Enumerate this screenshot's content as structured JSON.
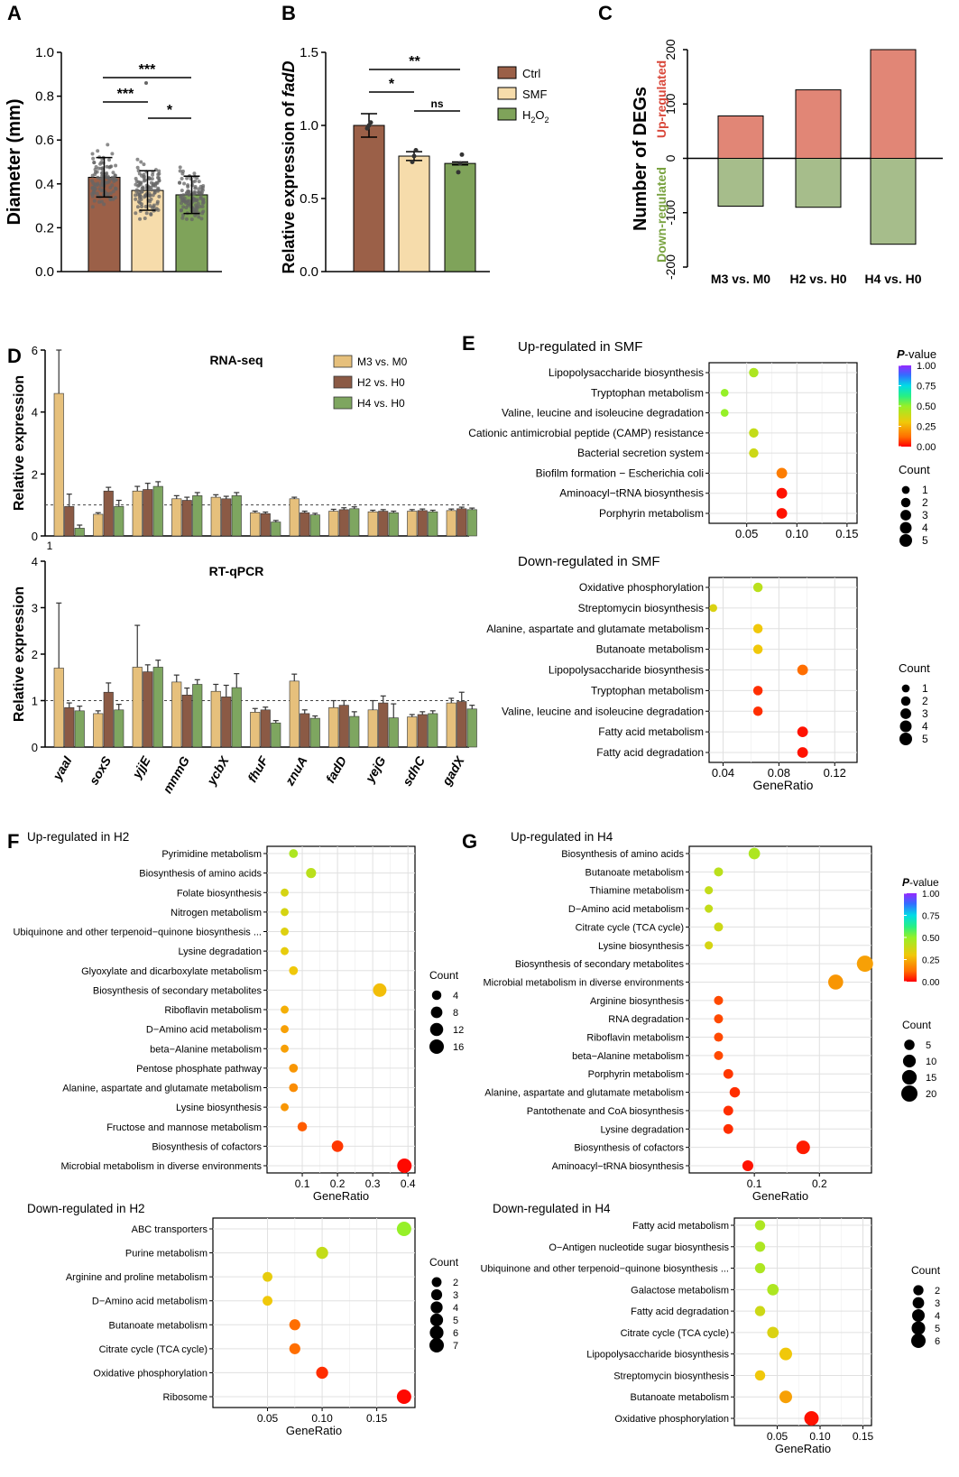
{
  "colors": {
    "ctrl": "#9b6048",
    "smf": "#f6dcab",
    "h2o2": "#7fa35a",
    "m3": "#e6c07c",
    "h2": "#8b5a45",
    "h4": "#7ea660",
    "up": "#e18676",
    "down": "#a6bd8b",
    "up_text": "#d9483b",
    "down_text": "#7aa341"
  },
  "chart_data": [
    {
      "id": "A",
      "panel_label": "A",
      "type": "bar",
      "categories": [
        "Ctrl",
        "SMF",
        "H2O2"
      ],
      "values": [
        0.43,
        0.37,
        0.35
      ],
      "errors": [
        0.09,
        0.09,
        0.085
      ],
      "ylabel": "Diameter (mm)",
      "ylim": [
        0,
        1.0
      ],
      "yticks": [
        "0.0",
        "0.2",
        "0.4",
        "0.6",
        "0.8",
        "1.0"
      ],
      "significance": [
        {
          "pair": [
            0,
            1
          ],
          "label": "***"
        },
        {
          "pair": [
            0,
            2
          ],
          "label": "***"
        },
        {
          "pair": [
            1,
            2
          ],
          "label": "*"
        }
      ]
    },
    {
      "id": "B",
      "panel_label": "B",
      "type": "bar",
      "categories": [
        "Ctrl",
        "SMF",
        "H2O2"
      ],
      "values": [
        1.0,
        0.79,
        0.74
      ],
      "errors": [
        0.08,
        0.03,
        0.01
      ],
      "ylabel": "Relative expression of fadD",
      "ylabel_prefix": "Relative expression of ",
      "ylabel_gene": "fadD",
      "ylim": [
        0,
        1.5
      ],
      "yticks": [
        "0.0",
        "0.5",
        "1.0",
        "1.5"
      ],
      "legend": [
        "Ctrl",
        "SMF",
        "H2O2"
      ],
      "legend_h2o2_parts": [
        "H",
        "2",
        "O",
        "2"
      ],
      "significance": [
        {
          "pair": [
            0,
            1
          ],
          "label": "*"
        },
        {
          "pair": [
            0,
            2
          ],
          "label": "**"
        },
        {
          "pair": [
            1,
            2
          ],
          "label": "ns"
        }
      ]
    },
    {
      "id": "C",
      "panel_label": "C",
      "type": "bar",
      "categories": [
        "M3 vs. M0",
        "H2 vs. H0",
        "H4 vs. H0"
      ],
      "up": [
        78,
        126,
        200
      ],
      "down": [
        -88,
        -90,
        -158
      ],
      "ylabel": "Number of DEGs",
      "up_label": "Up-regulated",
      "down_label": "Down-regulated",
      "ylim": [
        -200,
        200
      ],
      "yticks": [
        "-200",
        "-100",
        "0",
        "100",
        "200"
      ]
    },
    {
      "id": "D_rnaseq",
      "panel_label": "D",
      "type": "bar",
      "title": "RNA-seq",
      "ylabel": "Relative expression",
      "ylim": [
        0,
        6
      ],
      "yticks": [
        "0",
        "2",
        "4",
        "6"
      ],
      "x_extra_tick": "1",
      "categories": [
        "yaaI",
        "soxS",
        "yjjE",
        "mnmG",
        "ycbX",
        "fhuF",
        "znuA",
        "fadD",
        "yejG",
        "sdhC",
        "gadX"
      ],
      "series": [
        {
          "name": "M3 vs. M0",
          "values": [
            4.6,
            0.7,
            1.45,
            1.2,
            1.25,
            0.75,
            1.2,
            0.8,
            0.78,
            0.8,
            0.82
          ],
          "errors": [
            1.4,
            0.05,
            0.15,
            0.1,
            0.08,
            0.05,
            0.05,
            0.06,
            0.05,
            0.05,
            0.05
          ]
        },
        {
          "name": "H2 vs. H0",
          "values": [
            0.95,
            1.45,
            1.5,
            1.15,
            1.2,
            0.72,
            0.75,
            0.85,
            0.8,
            0.82,
            0.88
          ],
          "errors": [
            0.4,
            0.12,
            0.2,
            0.1,
            0.08,
            0.05,
            0.05,
            0.06,
            0.05,
            0.05,
            0.05
          ]
        },
        {
          "name": "H4 vs. H0",
          "values": [
            0.25,
            0.95,
            1.6,
            1.3,
            1.3,
            0.45,
            0.68,
            0.88,
            0.75,
            0.78,
            0.85
          ],
          "errors": [
            0.1,
            0.2,
            0.15,
            0.1,
            0.1,
            0.05,
            0.05,
            0.06,
            0.05,
            0.05,
            0.05
          ]
        }
      ],
      "reference_line": 1
    },
    {
      "id": "D_rtqpcr",
      "type": "bar",
      "title": "RT-qPCR",
      "ylabel": "Relative expression",
      "ylim": [
        0,
        4
      ],
      "yticks": [
        "0",
        "1",
        "2",
        "3",
        "4"
      ],
      "categories": [
        "yaaI",
        "soxS",
        "yjjE",
        "mnmG",
        "ycbX",
        "fhuF",
        "znuA",
        "fadD",
        "yejG",
        "sdhC",
        "gadX"
      ],
      "series": [
        {
          "name": "M3 vs. M0",
          "values": [
            1.7,
            0.72,
            1.72,
            1.4,
            1.2,
            0.75,
            1.42,
            0.85,
            0.8,
            0.65,
            0.95
          ],
          "errors": [
            1.4,
            0.06,
            0.9,
            0.15,
            0.15,
            0.08,
            0.15,
            0.15,
            0.2,
            0.05,
            0.1
          ]
        },
        {
          "name": "H2 vs. H0",
          "values": [
            0.85,
            1.18,
            1.62,
            1.12,
            1.08,
            0.8,
            0.72,
            0.9,
            0.95,
            0.7,
            0.98
          ],
          "errors": [
            0.1,
            0.2,
            0.15,
            0.15,
            0.25,
            0.06,
            0.08,
            0.1,
            0.15,
            0.06,
            0.2
          ]
        },
        {
          "name": "H4 vs. H0",
          "values": [
            0.78,
            0.8,
            1.72,
            1.35,
            1.28,
            0.52,
            0.62,
            0.66,
            0.63,
            0.72,
            0.82
          ],
          "errors": [
            0.1,
            0.12,
            0.15,
            0.1,
            0.3,
            0.05,
            0.05,
            0.1,
            0.3,
            0.06,
            0.08
          ]
        }
      ],
      "reference_line": 1
    },
    {
      "id": "E_up",
      "panel_label": "E",
      "type": "scatter",
      "title": "Up-regulated in SMF",
      "xlabel": "",
      "xlim": [
        0.0125,
        0.16
      ],
      "xticks": [
        0.05,
        0.1,
        0.15
      ],
      "xtick_labels": [
        "0.05",
        "0.10",
        "0.15"
      ],
      "pathways": [
        "Lipopolysaccharide biosynthesis",
        "Tryptophan metabolism",
        "Valine, leucine and isoleucine degradation",
        "Cationic antimicrobial peptide (CAMP) resistance",
        "Bacterial secretion system",
        "Biofilm formation − Escherichia coli",
        "Aminoacyl−tRNA biosynthesis",
        "Porphyrin metabolism"
      ],
      "gene_ratio": [
        0.057,
        0.028,
        0.028,
        0.057,
        0.057,
        0.085,
        0.085,
        0.085
      ],
      "count": [
        2,
        1,
        1,
        2,
        2,
        3,
        3,
        3
      ],
      "pvalue": [
        0.45,
        0.5,
        0.5,
        0.4,
        0.38,
        0.15,
        0.02,
        0.02
      ],
      "legend_title": "P-value",
      "legend_title_italic": "P",
      "legend_title_rest": "-value",
      "pvalue_ticks": [
        "1.00",
        "0.75",
        "0.50",
        "0.25",
        "0.00"
      ],
      "count_title": "Count",
      "count_levels": [
        1,
        2,
        3,
        4,
        5
      ]
    },
    {
      "id": "E_down",
      "type": "scatter",
      "title": "Down-regulated in SMF",
      "xlabel": "GeneRatio",
      "xlim": [
        0.03,
        0.136
      ],
      "xticks": [
        0.04,
        0.08,
        0.12
      ],
      "xtick_labels": [
        "0.04",
        "0.08",
        "0.12"
      ],
      "pathways": [
        "Oxidative phosphorylation",
        "Streptomycin biosynthesis",
        "Alanine, aspartate and glutamate metabolism",
        "Butanoate metabolism",
        "Lipopolysaccharide biosynthesis",
        "Tryptophan metabolism",
        "Valine, leucine and isoleucine degradation",
        "Fatty acid metabolism",
        "Fatty acid degradation"
      ],
      "gene_ratio": [
        0.065,
        0.033,
        0.065,
        0.065,
        0.097,
        0.065,
        0.065,
        0.097,
        0.097
      ],
      "count": [
        2,
        1,
        2,
        2,
        3,
        2,
        2,
        3,
        3
      ],
      "pvalue": [
        0.42,
        0.35,
        0.3,
        0.3,
        0.12,
        0.05,
        0.05,
        0.02,
        0.02
      ],
      "count_title": "Count",
      "count_levels": [
        1,
        2,
        3,
        4,
        5
      ]
    },
    {
      "id": "F_up",
      "panel_label": "F",
      "type": "scatter",
      "title": "Up-regulated in H2",
      "xlabel": "GeneRatio",
      "xlim": [
        0.0,
        0.42
      ],
      "xticks": [
        0.1,
        0.2,
        0.3,
        0.4
      ],
      "xtick_labels": [
        "0.1",
        "0.2",
        "0.3",
        "0.4"
      ],
      "pathways": [
        "Pyrimidine metabolism",
        "Biosynthesis of amino acids",
        "Folate biosynthesis",
        "Nitrogen metabolism",
        "Ubiquinone and other terpenoid−quinone biosynthesis ...",
        "Lysine degradation",
        "Glyoxylate and dicarboxylate metabolism",
        "Biosynthesis of secondary metabolites",
        "Riboflavin metabolism",
        "D−Amino acid metabolism",
        "beta−Alanine metabolism",
        "Pentose phosphate pathway",
        "Alanine, aspartate and glutamate metabolism",
        "Lysine biosynthesis",
        "Fructose and mannose metabolism",
        "Biosynthesis of cofactors",
        "Microbial metabolism in diverse environments"
      ],
      "gene_ratio": [
        0.075,
        0.125,
        0.05,
        0.05,
        0.05,
        0.05,
        0.075,
        0.32,
        0.05,
        0.05,
        0.05,
        0.075,
        0.075,
        0.05,
        0.1,
        0.2,
        0.39
      ],
      "count": [
        3,
        5,
        2,
        2,
        2,
        2,
        3,
        13,
        2,
        2,
        2,
        3,
        3,
        2,
        4,
        8,
        16
      ],
      "pvalue": [
        0.45,
        0.42,
        0.36,
        0.36,
        0.34,
        0.32,
        0.3,
        0.28,
        0.25,
        0.22,
        0.22,
        0.2,
        0.18,
        0.2,
        0.1,
        0.06,
        0.01
      ],
      "count_title": "Count",
      "count_levels": [
        4,
        8,
        12,
        16
      ]
    },
    {
      "id": "F_down",
      "type": "scatter",
      "title": "Down-regulated in H2",
      "xlabel": "GeneRatio",
      "xlim": [
        0.0,
        0.185
      ],
      "xticks": [
        0.05,
        0.1,
        0.15
      ],
      "xtick_labels": [
        "0.05",
        "0.10",
        "0.15"
      ],
      "pathways": [
        "ABC transporters",
        "Purine metabolism",
        "Arginine and proline metabolism",
        "D−Amino acid metabolism",
        "Butanoate metabolism",
        "Citrate cycle (TCA cycle)",
        "Oxidative phosphorylation",
        "Ribosome"
      ],
      "gene_ratio": [
        0.175,
        0.1,
        0.05,
        0.05,
        0.075,
        0.075,
        0.1,
        0.175
      ],
      "count": [
        7,
        4,
        2,
        2,
        3,
        3,
        4,
        7
      ],
      "pvalue": [
        0.5,
        0.4,
        0.32,
        0.3,
        0.12,
        0.12,
        0.05,
        0.01
      ],
      "count_title": "Count",
      "count_levels": [
        2,
        3,
        4,
        5,
        6,
        7
      ]
    },
    {
      "id": "G_up",
      "panel_label": "G",
      "type": "scatter",
      "title": "Up-regulated in H4",
      "xlabel": "GeneRatio",
      "xlim": [
        0.0,
        0.28
      ],
      "xticks": [
        0.1,
        0.2
      ],
      "xtick_labels": [
        "0.1",
        "0.2"
      ],
      "pathways": [
        "Biosynthesis of amino acids",
        "Butanoate metabolism",
        "Thiamine metabolism",
        "D−Amino acid metabolism",
        "Citrate cycle (TCA cycle)",
        "Lysine biosynthesis",
        "Biosynthesis of secondary metabolites",
        "Microbial metabolism in diverse environments",
        "Arginine biosynthesis",
        "RNA degradation",
        "Riboflavin metabolism",
        "beta−Alanine metabolism",
        "Porphyrin metabolism",
        "Alanine, aspartate and glutamate metabolism",
        "Pantothenate and CoA biosynthesis",
        "Lysine degradation",
        "Biosynthesis of cofactors",
        "Aminoacyl−tRNA biosynthesis"
      ],
      "gene_ratio": [
        0.1,
        0.045,
        0.03,
        0.03,
        0.045,
        0.03,
        0.27,
        0.225,
        0.045,
        0.045,
        0.045,
        0.045,
        0.06,
        0.07,
        0.06,
        0.06,
        0.175,
        0.09
      ],
      "count": [
        7,
        3,
        2,
        2,
        3,
        2,
        20,
        16,
        3,
        3,
        3,
        3,
        4,
        5,
        4,
        4,
        12,
        6
      ],
      "pvalue": [
        0.45,
        0.42,
        0.4,
        0.4,
        0.38,
        0.36,
        0.22,
        0.2,
        0.08,
        0.08,
        0.08,
        0.08,
        0.06,
        0.05,
        0.05,
        0.05,
        0.03,
        0.02
      ],
      "legend_title": "P-value",
      "legend_title_italic": "P",
      "legend_title_rest": "-value",
      "pvalue_ticks": [
        "1.00",
        "0.75",
        "0.50",
        "0.25",
        "0.00"
      ],
      "count_title": "Count",
      "count_levels": [
        5,
        10,
        15,
        20
      ]
    },
    {
      "id": "G_down",
      "type": "scatter",
      "title": "Down-regulated in H4",
      "xlabel": "GeneRatio",
      "xlim": [
        0.0,
        0.16
      ],
      "xticks": [
        0.05,
        0.1,
        0.15
      ],
      "xtick_labels": [
        "0.05",
        "0.10",
        "0.15"
      ],
      "pathways": [
        "Fatty acid metabolism",
        "O−Antigen nucleotide sugar biosynthesis",
        "Ubiquinone and other terpenoid−quinone biosynthesis ...",
        "Galactose metabolism",
        "Fatty acid degradation",
        "Citrate cycle (TCA cycle)",
        "Lipopolysaccharide biosynthesis",
        "Streptomycin biosynthesis",
        "Butanoate metabolism",
        "Oxidative phosphorylation"
      ],
      "gene_ratio": [
        0.03,
        0.03,
        0.03,
        0.045,
        0.03,
        0.045,
        0.06,
        0.03,
        0.06,
        0.09
      ],
      "count": [
        2,
        2,
        2,
        3,
        2,
        3,
        4,
        2,
        4,
        6
      ],
      "pvalue": [
        0.45,
        0.45,
        0.45,
        0.45,
        0.38,
        0.35,
        0.3,
        0.3,
        0.22,
        0.02
      ],
      "count_title": "Count",
      "count_levels": [
        2,
        3,
        4,
        5,
        6
      ]
    }
  ]
}
